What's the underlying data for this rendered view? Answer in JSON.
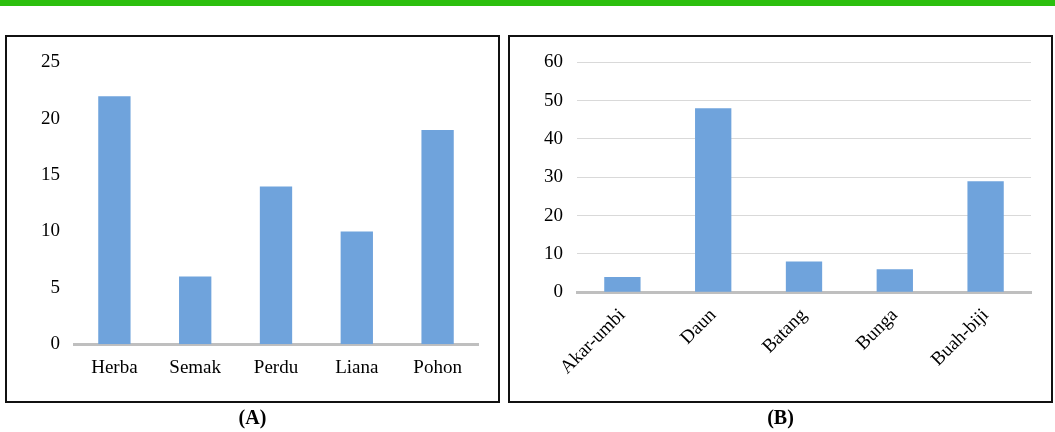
{
  "chart_data": [
    {
      "type": "bar",
      "categories": [
        "Herba",
        "Semak",
        "Perdu",
        "Liana",
        "Pohon"
      ],
      "values": [
        22,
        6,
        14,
        10,
        19
      ],
      "color": "#6fa3dc",
      "ylim": [
        0,
        25
      ],
      "yticks": [
        0,
        5,
        10,
        15,
        20,
        25
      ],
      "grid": false,
      "annotations": [
        "(A)"
      ]
    },
    {
      "type": "bar",
      "categories": [
        "Akar-umbi",
        "Daun",
        "Batang",
        "Bunga",
        "Buah-biji"
      ],
      "values": [
        4,
        48,
        8,
        6,
        29
      ],
      "color": "#6fa3dc",
      "ylim": [
        0,
        60
      ],
      "yticks": [
        0,
        10,
        20,
        30,
        40,
        50,
        60
      ],
      "grid": "y",
      "annotations": [
        "(B)"
      ]
    }
  ]
}
